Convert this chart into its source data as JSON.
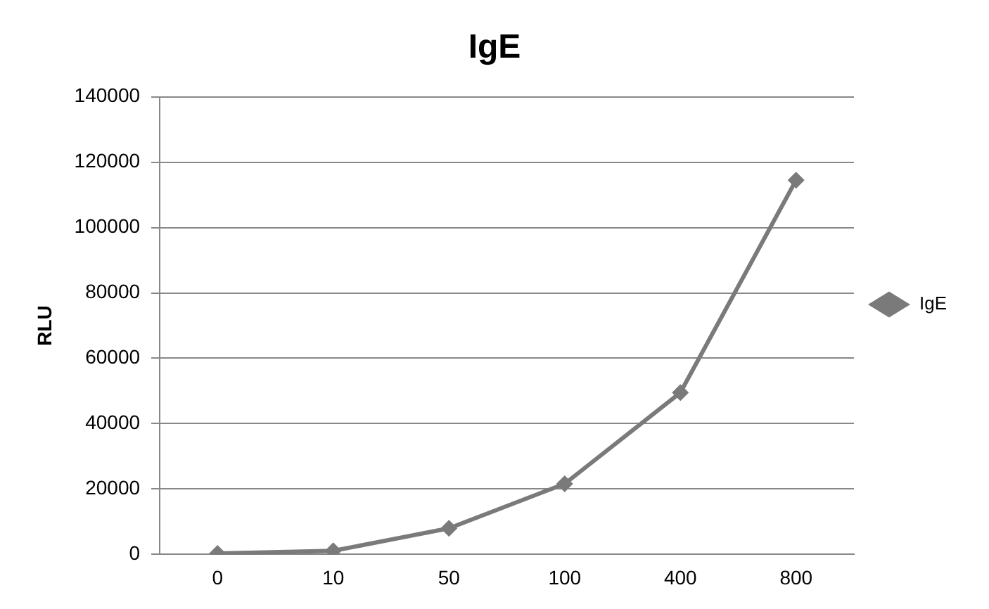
{
  "chart_data": {
    "type": "line",
    "title": "IgE",
    "ylabel": "RLU",
    "categories": [
      "0",
      "10",
      "50",
      "100",
      "400",
      "800"
    ],
    "series": [
      {
        "name": "IgE",
        "color": "#7a7a7a",
        "values": [
          300,
          1100,
          8000,
          21600,
          49500,
          114500
        ]
      }
    ],
    "ylim": [
      0,
      140000
    ],
    "yticks": [
      0,
      20000,
      40000,
      60000,
      80000,
      100000,
      120000,
      140000
    ],
    "grid": "y",
    "legend": "right",
    "marker": "diamond",
    "line_style": "solid"
  }
}
